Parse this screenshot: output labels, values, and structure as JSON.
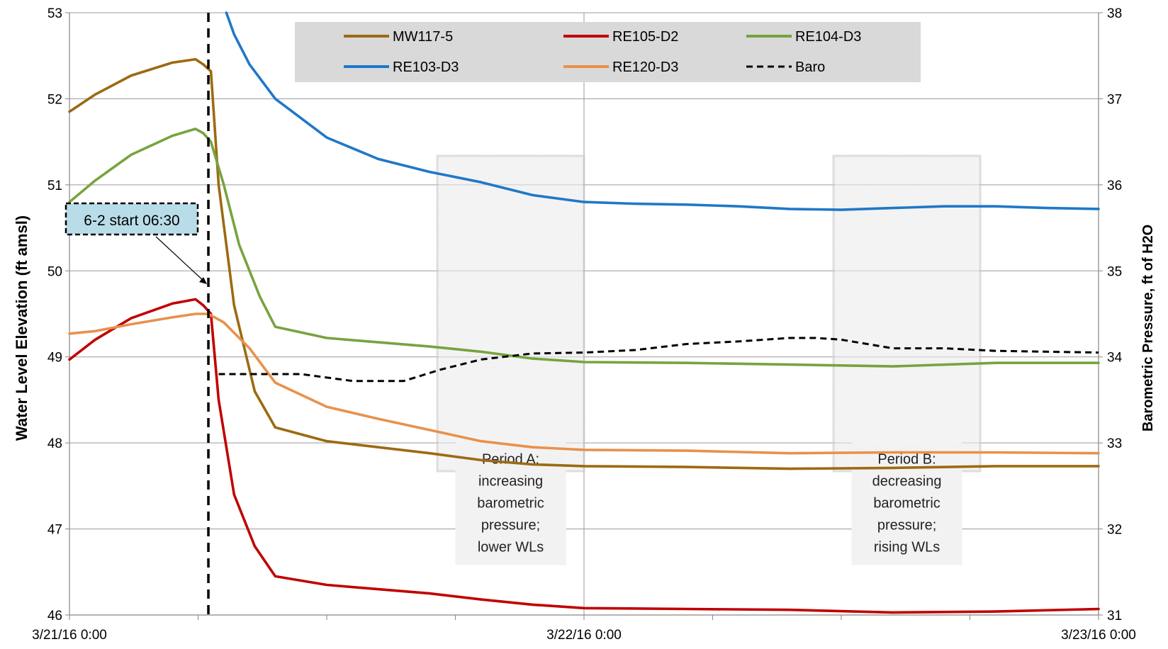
{
  "chart_data": {
    "type": "line",
    "title": "",
    "xlabel": "",
    "ylabel": "Water Level Elevation (ft amsl)",
    "y2label": "Barometric Pressure, ft of H2O",
    "x_tick_labels": [
      "3/21/16 0:00",
      "3/22/16 0:00",
      "3/23/16 0:00"
    ],
    "x_range_days": [
      0,
      2
    ],
    "ylim": [
      46,
      53
    ],
    "y_ticks": [
      "46",
      "47",
      "48",
      "49",
      "50",
      "51",
      "52",
      "53"
    ],
    "y2lim": [
      31,
      38
    ],
    "y2_ticks": [
      "31",
      "32",
      "33",
      "34",
      "35",
      "36",
      "37",
      "38"
    ],
    "grid": "major vertical and horizontal",
    "legend_position": "top-center",
    "series": [
      {
        "name": "MW117-5",
        "color": "#9c6a12",
        "axis": "left",
        "style": "solid",
        "x": [
          0,
          0.05,
          0.12,
          0.2,
          0.245,
          0.26,
          0.275,
          0.29,
          0.32,
          0.36,
          0.4,
          0.5,
          0.6,
          0.7,
          0.8,
          0.9,
          1.0,
          1.2,
          1.4,
          1.6,
          1.8,
          2.0
        ],
        "y": [
          51.85,
          52.05,
          52.27,
          52.42,
          52.46,
          52.4,
          52.32,
          51.0,
          49.6,
          48.6,
          48.18,
          48.02,
          47.95,
          47.88,
          47.8,
          47.75,
          47.73,
          47.72,
          47.7,
          47.71,
          47.73,
          47.73
        ]
      },
      {
        "name": "RE105-D2",
        "color": "#c00000",
        "axis": "left",
        "style": "solid",
        "x": [
          0,
          0.05,
          0.12,
          0.2,
          0.245,
          0.26,
          0.275,
          0.29,
          0.32,
          0.36,
          0.4,
          0.5,
          0.6,
          0.7,
          0.8,
          0.9,
          1.0,
          1.2,
          1.4,
          1.6,
          1.8,
          2.0
        ],
        "y": [
          48.97,
          49.2,
          49.45,
          49.62,
          49.67,
          49.6,
          49.5,
          48.5,
          47.4,
          46.8,
          46.45,
          46.35,
          46.3,
          46.25,
          46.18,
          46.12,
          46.08,
          46.07,
          46.06,
          46.03,
          46.04,
          46.07
        ]
      },
      {
        "name": "RE104-D3",
        "color": "#77a33f",
        "axis": "left",
        "style": "solid",
        "x": [
          0,
          0.05,
          0.12,
          0.2,
          0.245,
          0.26,
          0.275,
          0.3,
          0.33,
          0.37,
          0.4,
          0.5,
          0.6,
          0.7,
          0.8,
          0.9,
          1.0,
          1.2,
          1.4,
          1.6,
          1.8,
          2.0
        ],
        "y": [
          50.8,
          51.05,
          51.35,
          51.57,
          51.65,
          51.6,
          51.5,
          51.0,
          50.3,
          49.7,
          49.35,
          49.22,
          49.17,
          49.12,
          49.06,
          48.98,
          48.94,
          48.93,
          48.91,
          48.89,
          48.93,
          48.93
        ]
      },
      {
        "name": "RE103-D3",
        "color": "#1f78c8",
        "axis": "left",
        "style": "solid",
        "x": [
          0.305,
          0.32,
          0.35,
          0.4,
          0.5,
          0.6,
          0.7,
          0.8,
          0.9,
          1.0,
          1.1,
          1.2,
          1.3,
          1.4,
          1.5,
          1.6,
          1.7,
          1.8,
          1.9,
          2.0
        ],
        "y": [
          53.0,
          52.75,
          52.4,
          52.0,
          51.55,
          51.3,
          51.15,
          51.03,
          50.88,
          50.8,
          50.78,
          50.77,
          50.75,
          50.72,
          50.71,
          50.73,
          50.75,
          50.75,
          50.73,
          50.72
        ]
      },
      {
        "name": "RE120-D3",
        "color": "#e8914b",
        "axis": "left",
        "style": "solid",
        "x": [
          0,
          0.05,
          0.12,
          0.2,
          0.245,
          0.27,
          0.3,
          0.35,
          0.4,
          0.5,
          0.6,
          0.7,
          0.8,
          0.9,
          1.0,
          1.2,
          1.4,
          1.6,
          1.8,
          2.0
        ],
        "y": [
          49.27,
          49.3,
          49.38,
          49.46,
          49.5,
          49.5,
          49.4,
          49.1,
          48.7,
          48.42,
          48.28,
          48.15,
          48.02,
          47.95,
          47.92,
          47.91,
          47.88,
          47.89,
          47.89,
          47.88
        ]
      },
      {
        "name": "Baro",
        "color": "#000000",
        "axis": "right",
        "style": "dashed",
        "x": [
          0.29,
          0.35,
          0.45,
          0.55,
          0.65,
          0.72,
          0.8,
          0.9,
          1.0,
          1.1,
          1.2,
          1.3,
          1.4,
          1.45,
          1.5,
          1.6,
          1.7,
          1.8,
          1.9,
          2.0
        ],
        "y": [
          33.8,
          33.8,
          33.8,
          33.72,
          33.72,
          33.85,
          33.97,
          34.04,
          34.05,
          34.08,
          34.15,
          34.18,
          34.22,
          34.22,
          34.2,
          34.1,
          34.1,
          34.07,
          34.06,
          34.05
        ]
      }
    ],
    "event_marker": {
      "x": 0.27,
      "label": "6-2 start 06:30"
    },
    "annotations": [
      {
        "name": "period-a",
        "x_start": 0.715,
        "x_end": 1.0,
        "text": [
          "Period A:",
          "increasing",
          "barometric",
          "pressure;",
          "lower WLs"
        ]
      },
      {
        "name": "period-b",
        "x_start": 1.485,
        "x_end": 1.77,
        "text": [
          "Period B:",
          "decreasing",
          "barometric",
          "pressure;",
          "rising WLs"
        ]
      }
    ]
  }
}
